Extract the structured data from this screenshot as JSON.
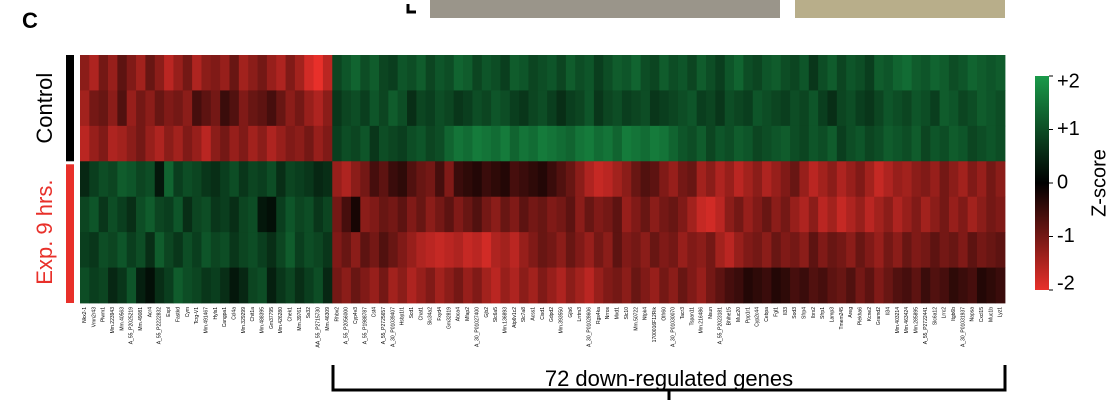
{
  "chart_data": {
    "type": "heatmap",
    "panel_label": "C",
    "x": [
      "Nkx2-1",
      "Vmn2r43",
      "Plwm1",
      "Mm.223943",
      "Mm.40563",
      "A_55_P2025219",
      "Mm.49081",
      "Acr4",
      "A_55_P2222832",
      "Espl",
      "Fastkd",
      "Cym",
      "Tcrg-V1",
      "Mm.491467",
      "Hyls1",
      "Cangpa1",
      "Ccl4a",
      "Mm.329299",
      "Chit1a",
      "Mm.488395",
      "Gm37795",
      "Mm.426280",
      "Chek1",
      "Mm.39761",
      "Ss32",
      "AA_55_P2715730",
      "Mm.46309",
      "Rhbv2",
      "A_55_P2056000",
      "Cyp4v3",
      "A_55_P1988787",
      "Cst4",
      "A_55_P2725657",
      "A_30_P01039407",
      "Hsbp1l1",
      "Scd1",
      "Chat1",
      "Slc34a2",
      "Fxyd4",
      "Gm32819",
      "Abca4",
      "Mfap2",
      "A_30_P01027400",
      "Gjb2",
      "Slc6a5",
      "Mm.136893",
      "Atp6v1c2",
      "Slc7a8",
      "Acss1",
      "Cisd1",
      "Gdpd2",
      "Mm.393550",
      "Gjb6",
      "Lrrtm3",
      "A_30_P01028606",
      "Rgs4ka",
      "Nrros",
      "Mxd1",
      "Slc10",
      "Mm.50722",
      "Ntpk4",
      "1700016F12Rik",
      "Olfr60",
      "A_30_P01030070",
      "Tacr3",
      "Tspan11",
      "Mm.216486",
      "Nsun",
      "A_55_P2023181",
      "Bhlhe15",
      "Muc20",
      "Ppp1r1",
      "Cyp2c44",
      "Cebpa",
      "Fgl1",
      "Il33",
      "Sod3",
      "Sfrp4",
      "Ibrx2",
      "Sfrp1",
      "Lamp3",
      "Tmem245",
      "Areg",
      "Plekha6",
      "Kcne2",
      "Gramd2",
      "Il34",
      "Mm.403214",
      "Mm.463424",
      "Mm.285895",
      "A_55_P2722441",
      "Slc6a12",
      "Lrrc2",
      "Itgb6b",
      "A_30_P01031937",
      "Napsa",
      "Cxcl15",
      "Muc1b",
      "Lyz1"
    ],
    "series": [
      {
        "name": "Control",
        "color": "#000000",
        "values": [
          [
            -1.2,
            -1.5,
            -1.0,
            -1.3,
            -0.8,
            -1.1,
            -1.4,
            -0.9,
            -1.2,
            -1.6,
            -1.3,
            -1.0,
            -1.5,
            -1.2,
            -1.1,
            -1.3,
            -0.9,
            -1.4,
            -1.2,
            -1.0,
            -1.3,
            -1.5,
            -1.1,
            -1.4,
            -1.8,
            -2.0,
            -1.6,
            0.9,
            1.1,
            1.3,
            1.0,
            1.2,
            0.9,
            0.8,
            1.1,
            1.0,
            1.2,
            0.9,
            1.1,
            1.0,
            1.3,
            1.2,
            0.9,
            1.1,
            1.0,
            0.8,
            1.2,
            1.1,
            0.9,
            1.0,
            1.1,
            0.9,
            1.2,
            1.0,
            1.1,
            0.8,
            1.0,
            1.2,
            1.1,
            1.3,
            1.0,
            0.9,
            1.2,
            1.0,
            1.1,
            0.9,
            1.2,
            1.0,
            0.8,
            1.1,
            1.3,
            1.0,
            0.9,
            1.1,
            1.2,
            1.0,
            0.9,
            1.1,
            0.7,
            1.0,
            1.2,
            0.9,
            1.1,
            1.0,
            0.8,
            1.2,
            1.1,
            1.3,
            1.4,
            1.2,
            1.1,
            1.3,
            1.2,
            1.0,
            1.1,
            1.3,
            1.2,
            1.1,
            1.2
          ],
          [
            -1.4,
            -1.0,
            -0.9,
            -1.2,
            -0.7,
            -1.3,
            -1.0,
            -1.2,
            -0.9,
            -1.1,
            -1.0,
            -1.2,
            -0.6,
            -0.8,
            -1.0,
            -0.5,
            -0.7,
            -1.1,
            -0.9,
            -0.8,
            -0.6,
            -0.9,
            -1.2,
            -1.0,
            -1.3,
            -1.5,
            -1.2,
            0.7,
            0.9,
            1.0,
            0.8,
            1.1,
            0.9,
            1.2,
            1.0,
            0.6,
            0.9,
            0.8,
            1.0,
            0.9,
            0.7,
            0.8,
            1.0,
            0.9,
            1.1,
            1.0,
            0.8,
            0.7,
            0.9,
            1.0,
            0.8,
            0.6,
            0.8,
            0.9,
            1.1,
            0.7,
            0.9,
            1.0,
            0.8,
            0.9,
            1.0,
            0.7,
            0.8,
            0.9,
            1.0,
            1.1,
            0.8,
            0.9,
            0.7,
            1.0,
            0.9,
            0.8,
            1.1,
            1.0,
            0.9,
            0.8,
            1.0,
            0.9,
            1.1,
            0.8,
            0.6,
            0.9,
            1.0,
            0.8,
            0.7,
            0.9,
            1.1,
            1.0,
            0.9,
            1.1,
            1.0,
            0.8,
            1.2,
            1.1,
            0.9,
            1.0,
            1.2,
            1.1,
            1.0
          ],
          [
            -1.6,
            -1.3,
            -1.1,
            -1.5,
            -1.4,
            -1.2,
            -1.0,
            -1.3,
            -1.5,
            -1.2,
            -1.4,
            -1.1,
            -1.3,
            -1.6,
            -1.2,
            -1.0,
            -1.3,
            -1.1,
            -1.4,
            -1.2,
            -1.5,
            -1.3,
            -1.1,
            -1.2,
            -1.0,
            -1.3,
            -1.1,
            0.8,
            1.0,
            0.9,
            1.1,
            0.7,
            1.0,
            0.9,
            0.8,
            1.0,
            1.1,
            0.9,
            1.0,
            1.3,
            1.5,
            1.4,
            1.6,
            1.5,
            1.4,
            1.6,
            1.3,
            1.5,
            1.4,
            1.6,
            1.5,
            1.4,
            1.3,
            1.5,
            1.6,
            1.4,
            1.5,
            1.3,
            1.6,
            1.5,
            1.4,
            1.6,
            1.5,
            1.3,
            1.1,
            1.0,
            1.2,
            0.9,
            1.1,
            1.0,
            1.2,
            1.1,
            0.9,
            1.0,
            1.1,
            1.2,
            1.0,
            0.9,
            1.1,
            1.0,
            1.2,
            0.8,
            1.0,
            1.1,
            0.9,
            1.0,
            1.2,
            1.1,
            1.0,
            1.2,
            0.9,
            1.1,
            1.0,
            1.2,
            1.1,
            0.9,
            1.0,
            1.1,
            1.0
          ]
        ]
      },
      {
        "name": "Exp. 9 hrs.",
        "color": "#e8302a",
        "values": [
          [
            0.5,
            0.8,
            1.0,
            0.9,
            1.2,
            1.1,
            0.9,
            1.0,
            0.3,
            1.3,
            0.8,
            1.0,
            0.9,
            0.7,
            0.6,
            0.8,
            1.0,
            0.7,
            0.9,
            0.8,
            1.0,
            0.6,
            0.9,
            0.8,
            0.7,
            0.5,
            0.6,
            -1.3,
            -1.5,
            -1.2,
            -1.0,
            -0.6,
            -0.8,
            -0.5,
            -0.4,
            -0.7,
            -0.9,
            -1.0,
            -0.6,
            -1.1,
            -0.5,
            -0.4,
            -0.3,
            -0.5,
            -0.4,
            -0.3,
            -0.6,
            -0.5,
            -0.4,
            -0.3,
            -0.5,
            -0.7,
            -0.9,
            -1.2,
            -1.5,
            -1.7,
            -1.6,
            -1.4,
            -1.2,
            -0.9,
            -0.7,
            -0.8,
            -1.1,
            -1.3,
            -1.0,
            -0.9,
            -1.4,
            -1.2,
            -1.5,
            -1.3,
            -1.6,
            -1.4,
            -1.2,
            -1.5,
            -1.3,
            -1.1,
            -0.9,
            -1.3,
            -1.6,
            -1.4,
            -1.2,
            -1.5,
            -1.3,
            -1.1,
            -1.4,
            -1.7,
            -1.5,
            -1.3,
            -1.4,
            -1.2,
            -1.1,
            -1.3,
            -1.0,
            -1.2,
            -1.4,
            -1.1,
            -1.3,
            -1.0,
            -1.2
          ],
          [
            0.9,
            1.1,
            0.7,
            1.0,
            0.8,
            0.6,
            1.0,
            1.2,
            0.9,
            0.8,
            1.1,
            0.6,
            0.9,
            1.0,
            0.7,
            0.8,
            0.6,
            0.9,
            1.0,
            0.3,
            0.2,
            0.8,
            1.1,
            0.9,
            1.0,
            0.7,
            0.9,
            -1.0,
            -0.6,
            -0.2,
            -1.2,
            -1.1,
            -0.9,
            -1.0,
            -0.8,
            -1.1,
            -0.9,
            -1.2,
            -1.0,
            -0.8,
            -1.1,
            -0.9,
            -0.7,
            -1.0,
            -1.2,
            -0.9,
            -1.1,
            -0.8,
            -1.0,
            -0.9,
            -1.1,
            -1.0,
            -0.8,
            -1.2,
            -0.9,
            -1.1,
            -1.0,
            -0.8,
            -1.3,
            -1.1,
            -0.9,
            -1.2,
            -1.0,
            -0.9,
            -1.1,
            -1.4,
            -1.7,
            -1.8,
            -1.6,
            -1.2,
            -1.0,
            -1.3,
            -1.1,
            -0.9,
            -1.2,
            -1.0,
            -1.3,
            -1.5,
            -1.2,
            -1.6,
            -1.4,
            -1.7,
            -1.5,
            -1.3,
            -1.6,
            -1.4,
            -1.2,
            -1.5,
            -1.3,
            -1.1,
            -1.4,
            -1.2,
            -1.0,
            -1.3,
            -1.1,
            -1.4,
            -1.2,
            -1.0,
            -1.1
          ],
          [
            0.8,
            0.7,
            1.0,
            0.9,
            1.1,
            0.8,
            1.0,
            0.6,
            1.2,
            0.9,
            0.7,
            1.0,
            0.8,
            1.1,
            0.9,
            1.0,
            0.7,
            0.9,
            1.0,
            0.8,
            0.6,
            0.9,
            1.2,
            0.8,
            1.0,
            0.9,
            0.7,
            -1.1,
            -0.9,
            -1.2,
            -0.8,
            -1.0,
            -0.7,
            -0.9,
            -1.1,
            -1.3,
            -1.5,
            -1.6,
            -1.7,
            -1.6,
            -1.5,
            -1.7,
            -1.6,
            -1.8,
            -1.5,
            -1.4,
            -1.6,
            -1.3,
            -1.1,
            -0.9,
            -1.0,
            -1.2,
            -0.9,
            -1.1,
            -1.3,
            -1.0,
            -1.2,
            -0.8,
            -1.1,
            -1.0,
            -1.2,
            -0.9,
            -1.1,
            -1.0,
            -1.3,
            -1.1,
            -1.2,
            -1.0,
            -1.4,
            -1.6,
            -1.3,
            -1.1,
            -1.0,
            -1.2,
            -0.9,
            -1.1,
            -1.0,
            -1.2,
            -0.8,
            -1.1,
            -0.9,
            -1.0,
            -1.2,
            -0.9,
            -1.1,
            -1.3,
            -1.0,
            -1.2,
            -0.9,
            -1.1,
            -1.0,
            -0.8,
            -1.0,
            -0.9,
            -1.1,
            -0.8,
            -1.0,
            -0.9,
            -0.8
          ],
          [
            1.0,
            0.8,
            0.9,
            0.5,
            0.7,
            1.1,
            0.4,
            0.2,
            0.6,
            0.8,
            1.2,
            1.0,
            0.9,
            0.7,
            0.8,
            0.6,
            0.3,
            0.5,
            0.9,
            1.0,
            0.4,
            0.7,
            0.9,
            0.6,
            0.8,
            1.0,
            0.5,
            -1.0,
            -1.2,
            -0.9,
            -1.1,
            -1.3,
            -1.0,
            -1.4,
            -1.2,
            -1.5,
            -1.3,
            -1.1,
            -1.4,
            -1.2,
            -1.0,
            -1.3,
            -1.1,
            -1.4,
            -1.6,
            -1.3,
            -1.5,
            -1.2,
            -1.4,
            -1.1,
            -1.3,
            -1.5,
            -1.2,
            -1.4,
            -1.6,
            -1.3,
            -1.1,
            -1.0,
            -1.2,
            -0.9,
            -1.1,
            -1.3,
            -1.0,
            -1.2,
            -0.9,
            -1.1,
            -1.3,
            -1.0,
            -0.8,
            -0.6,
            -0.5,
            -0.3,
            -0.4,
            -0.5,
            -0.3,
            -0.4,
            -0.6,
            -0.5,
            -0.7,
            -0.6,
            -0.8,
            -0.9,
            -0.7,
            -1.0,
            -0.8,
            -1.1,
            -0.9,
            -0.7,
            -0.6,
            -0.8,
            -0.5,
            -0.7,
            -0.6,
            -0.4,
            -0.5,
            -0.6,
            -0.3,
            -0.4,
            -0.5
          ]
        ]
      }
    ],
    "colorbar": {
      "label": "Z-score",
      "lim": [
        -2,
        2
      ],
      "ticks": [
        {
          "value": 2,
          "label": "+2"
        },
        {
          "value": 1,
          "label": "+1"
        },
        0,
        -1,
        -2
      ],
      "colors": [
        "#e8302a",
        "#000000",
        "#1a9a4a"
      ]
    },
    "annotation": "72 down-regulated genes"
  }
}
